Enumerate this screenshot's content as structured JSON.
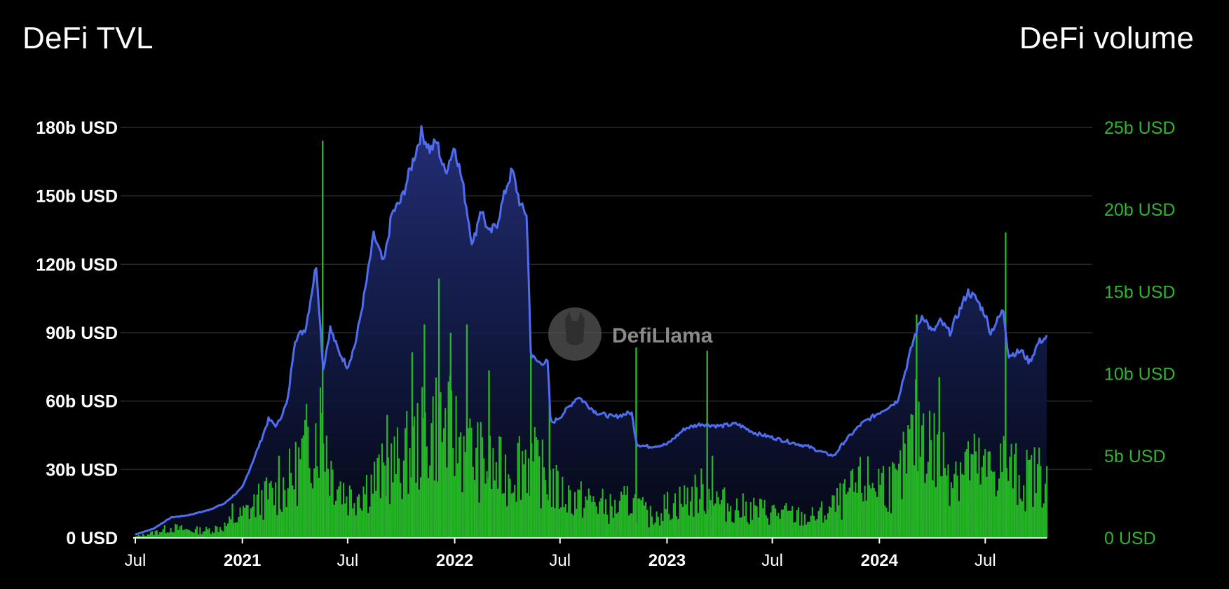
{
  "header": {
    "left_title": "DeFi TVL",
    "right_title": "DeFi volume"
  },
  "watermark": {
    "text": "DefiLlama",
    "icon": "llama-logo-icon"
  },
  "colors": {
    "background": "#000000",
    "tvl_line": "#4f6df0",
    "volume_bars": "#26b526",
    "right_axis_text": "#2fb52f",
    "gridline": "#2a2a2a"
  },
  "chart_data": {
    "type": "area",
    "title": "DeFi TVL / DeFi volume",
    "grid": true,
    "legend": "none",
    "x_ticks": [
      {
        "date": "2020-07-01",
        "label": "Jul",
        "bold": false
      },
      {
        "date": "2021-01-01",
        "label": "2021",
        "bold": true
      },
      {
        "date": "2021-07-01",
        "label": "Jul",
        "bold": false
      },
      {
        "date": "2022-01-01",
        "label": "2022",
        "bold": true
      },
      {
        "date": "2022-07-01",
        "label": "Jul",
        "bold": false
      },
      {
        "date": "2023-01-01",
        "label": "2023",
        "bold": true
      },
      {
        "date": "2023-07-01",
        "label": "Jul",
        "bold": false
      },
      {
        "date": "2024-01-01",
        "label": "2024",
        "bold": true
      },
      {
        "date": "2024-07-01",
        "label": "Jul",
        "bold": false
      }
    ],
    "x_range": [
      "2020-07-01",
      "2024-10-15"
    ],
    "left_axis": {
      "label": "DeFi TVL",
      "ylim": [
        0,
        180
      ],
      "ticks": [
        {
          "v": 0,
          "label": "0 USD"
        },
        {
          "v": 30,
          "label": "30b USD"
        },
        {
          "v": 60,
          "label": "60b USD"
        },
        {
          "v": 90,
          "label": "90b USD"
        },
        {
          "v": 120,
          "label": "120b USD"
        },
        {
          "v": 150,
          "label": "150b USD"
        },
        {
          "v": 180,
          "label": "180b USD"
        }
      ]
    },
    "right_axis": {
      "label": "DeFi volume",
      "ylim": [
        0,
        25
      ],
      "ticks": [
        {
          "v": 0,
          "label": "0 USD"
        },
        {
          "v": 5,
          "label": "5b USD"
        },
        {
          "v": 10,
          "label": "10b USD"
        },
        {
          "v": 15,
          "label": "15b USD"
        },
        {
          "v": 20,
          "label": "20b USD"
        },
        {
          "v": 25,
          "label": "25b USD"
        }
      ]
    },
    "series": [
      {
        "name": "DeFi TVL",
        "type": "area",
        "axis": "left",
        "unit": "b USD",
        "points": [
          [
            "2020-07-01",
            1.5
          ],
          [
            "2020-08-01",
            4
          ],
          [
            "2020-09-01",
            9
          ],
          [
            "2020-10-01",
            10
          ],
          [
            "2020-11-01",
            12
          ],
          [
            "2020-12-01",
            15
          ],
          [
            "2021-01-01",
            22
          ],
          [
            "2021-02-01",
            42
          ],
          [
            "2021-02-15",
            52
          ],
          [
            "2021-03-01",
            49
          ],
          [
            "2021-03-20",
            60
          ],
          [
            "2021-04-01",
            87
          ],
          [
            "2021-04-20",
            92
          ],
          [
            "2021-05-08",
            120
          ],
          [
            "2021-05-20",
            74
          ],
          [
            "2021-06-01",
            92
          ],
          [
            "2021-06-15",
            82
          ],
          [
            "2021-07-01",
            75
          ],
          [
            "2021-07-15",
            86
          ],
          [
            "2021-08-01",
            110
          ],
          [
            "2021-08-15",
            133
          ],
          [
            "2021-09-01",
            120
          ],
          [
            "2021-09-15",
            142
          ],
          [
            "2021-10-01",
            148
          ],
          [
            "2021-10-15",
            160
          ],
          [
            "2021-11-05",
            178
          ],
          [
            "2021-11-20",
            170
          ],
          [
            "2021-12-01",
            174
          ],
          [
            "2021-12-15",
            160
          ],
          [
            "2022-01-01",
            172
          ],
          [
            "2022-01-15",
            155
          ],
          [
            "2022-02-01",
            128
          ],
          [
            "2022-02-15",
            145
          ],
          [
            "2022-03-01",
            133
          ],
          [
            "2022-03-15",
            138
          ],
          [
            "2022-04-01",
            155
          ],
          [
            "2022-04-10",
            161
          ],
          [
            "2022-04-25",
            145
          ],
          [
            "2022-05-05",
            142
          ],
          [
            "2022-05-12",
            80
          ],
          [
            "2022-05-25",
            77
          ],
          [
            "2022-06-10",
            77
          ],
          [
            "2022-06-15",
            50
          ],
          [
            "2022-07-01",
            53
          ],
          [
            "2022-08-01",
            62
          ],
          [
            "2022-09-01",
            55
          ],
          [
            "2022-10-01",
            53
          ],
          [
            "2022-11-01",
            55
          ],
          [
            "2022-11-10",
            41
          ],
          [
            "2022-12-01",
            40
          ],
          [
            "2023-01-01",
            41
          ],
          [
            "2023-02-01",
            48
          ],
          [
            "2023-03-01",
            50
          ],
          [
            "2023-04-01",
            49
          ],
          [
            "2023-05-01",
            50
          ],
          [
            "2023-06-01",
            46
          ],
          [
            "2023-07-01",
            44
          ],
          [
            "2023-08-01",
            42
          ],
          [
            "2023-09-01",
            40
          ],
          [
            "2023-10-01",
            37
          ],
          [
            "2023-10-15",
            36
          ],
          [
            "2023-11-01",
            42
          ],
          [
            "2023-12-01",
            50
          ],
          [
            "2024-01-01",
            55
          ],
          [
            "2024-02-01",
            60
          ],
          [
            "2024-03-01",
            88
          ],
          [
            "2024-03-15",
            98
          ],
          [
            "2024-04-01",
            90
          ],
          [
            "2024-04-15",
            95
          ],
          [
            "2024-05-01",
            90
          ],
          [
            "2024-06-01",
            108
          ],
          [
            "2024-06-15",
            105
          ],
          [
            "2024-07-01",
            98
          ],
          [
            "2024-07-10",
            90
          ],
          [
            "2024-08-01",
            100
          ],
          [
            "2024-08-10",
            80
          ],
          [
            "2024-09-01",
            82
          ],
          [
            "2024-09-15",
            77
          ],
          [
            "2024-10-01",
            86
          ],
          [
            "2024-10-15",
            88
          ]
        ]
      },
      {
        "name": "DeFi volume",
        "type": "bar",
        "axis": "right",
        "unit": "b USD",
        "envelope": [
          [
            "2020-07-01",
            0.1
          ],
          [
            "2020-08-01",
            0.4
          ],
          [
            "2020-09-01",
            0.8
          ],
          [
            "2020-10-01",
            0.6
          ],
          [
            "2020-11-01",
            0.6
          ],
          [
            "2020-12-01",
            0.9
          ],
          [
            "2021-01-01",
            1.8
          ],
          [
            "2021-02-01",
            3.0
          ],
          [
            "2021-03-01",
            3.5
          ],
          [
            "2021-04-01",
            5.0
          ],
          [
            "2021-05-01",
            8.0
          ],
          [
            "2021-05-20",
            9.5
          ],
          [
            "2021-06-01",
            5.5
          ],
          [
            "2021-07-01",
            3.2
          ],
          [
            "2021-08-01",
            4.0
          ],
          [
            "2021-09-01",
            5.0
          ],
          [
            "2021-10-01",
            6.0
          ],
          [
            "2021-11-01",
            7.5
          ],
          [
            "2021-12-01",
            9.0
          ],
          [
            "2022-01-01",
            8.0
          ],
          [
            "2022-02-01",
            6.5
          ],
          [
            "2022-03-01",
            5.5
          ],
          [
            "2022-04-01",
            5.0
          ],
          [
            "2022-05-01",
            6.5
          ],
          [
            "2022-06-01",
            5.0
          ],
          [
            "2022-07-01",
            3.5
          ],
          [
            "2022-08-01",
            3.0
          ],
          [
            "2022-09-01",
            2.8
          ],
          [
            "2022-10-01",
            2.2
          ],
          [
            "2022-11-01",
            3.0
          ],
          [
            "2022-12-01",
            1.6
          ],
          [
            "2023-01-01",
            2.5
          ],
          [
            "2023-02-01",
            3.0
          ],
          [
            "2023-03-01",
            3.6
          ],
          [
            "2023-04-01",
            2.8
          ],
          [
            "2023-05-01",
            2.3
          ],
          [
            "2023-06-01",
            2.2
          ],
          [
            "2023-07-01",
            2.0
          ],
          [
            "2023-08-01",
            1.8
          ],
          [
            "2023-09-01",
            1.5
          ],
          [
            "2023-10-01",
            2.0
          ],
          [
            "2023-11-01",
            3.0
          ],
          [
            "2023-12-01",
            4.2
          ],
          [
            "2024-01-01",
            4.5
          ],
          [
            "2024-02-01",
            4.0
          ],
          [
            "2024-03-01",
            8.0
          ],
          [
            "2024-03-15",
            9.0
          ],
          [
            "2024-04-01",
            7.0
          ],
          [
            "2024-05-01",
            5.5
          ],
          [
            "2024-06-01",
            6.0
          ],
          [
            "2024-07-01",
            5.0
          ],
          [
            "2024-08-01",
            6.0
          ],
          [
            "2024-09-01",
            4.5
          ],
          [
            "2024-10-01",
            5.0
          ],
          [
            "2024-10-15",
            5.5
          ]
        ],
        "spikes": [
          [
            "2020-12-15",
            2.1
          ],
          [
            "2021-03-05",
            5.0
          ],
          [
            "2021-05-19",
            24.2
          ],
          [
            "2021-09-07",
            7.5
          ],
          [
            "2021-10-20",
            11.3
          ],
          [
            "2021-11-10",
            13.0
          ],
          [
            "2021-12-05",
            15.8
          ],
          [
            "2021-12-25",
            12.5
          ],
          [
            "2022-01-22",
            13.0
          ],
          [
            "2022-03-01",
            10.2
          ],
          [
            "2022-05-12",
            11.5
          ],
          [
            "2022-06-13",
            8.5
          ],
          [
            "2022-11-09",
            11.6
          ],
          [
            "2023-03-11",
            11.4
          ],
          [
            "2023-03-20",
            5.0
          ],
          [
            "2024-03-05",
            13.6
          ],
          [
            "2024-04-13",
            9.8
          ],
          [
            "2024-08-05",
            18.6
          ]
        ]
      }
    ]
  }
}
